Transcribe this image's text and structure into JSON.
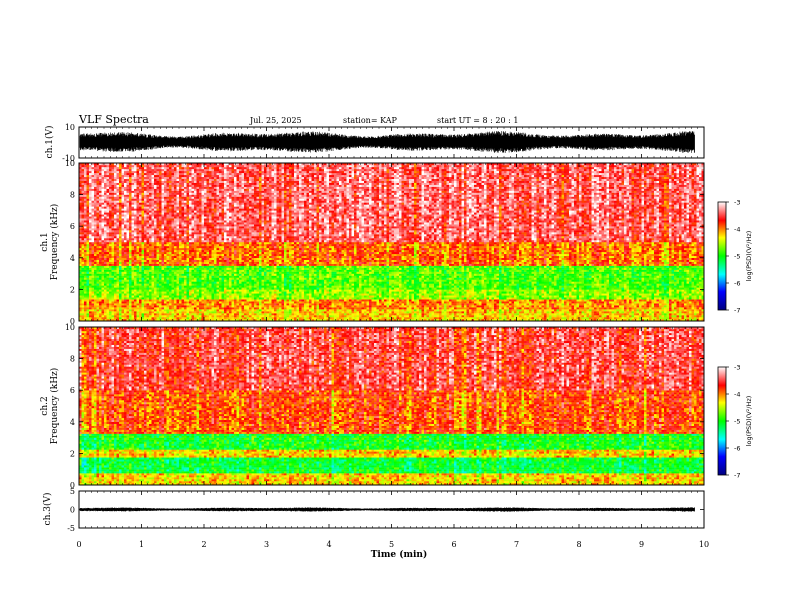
{
  "header": {
    "title": "VLF Spectra",
    "date": "Jul. 25, 2025",
    "station": "station= KAP",
    "start": "start UT =  8 : 20 : 1"
  },
  "chart_data": [
    {
      "type": "line",
      "name": "ch1-waveform",
      "ylabel": "ch.1(V)",
      "ylim": [
        -10,
        10
      ],
      "yticks": [
        "10",
        "-10"
      ],
      "xlim": [
        0,
        10
      ],
      "x_extent_min": 9.85,
      "envelope_approx": [
        -7,
        8
      ],
      "color": "#000000"
    },
    {
      "type": "heatmap",
      "name": "ch1-spectrogram",
      "ylabel_line1": "ch.1",
      "ylabel_line2": "Frequency (kHz)",
      "ylim": [
        0,
        10
      ],
      "yticks": [
        "0",
        "2",
        "4",
        "6",
        "8",
        "10"
      ],
      "xlim": [
        0,
        10
      ],
      "colorbar": {
        "label": "log(PSD)(V²/Hz)",
        "range": [
          -7,
          -3
        ],
        "ticks": [
          "-3",
          "-4",
          "-5",
          "-6",
          "-7"
        ],
        "colors": [
          "#000080",
          "#0000ff",
          "#00ffff",
          "#00ff00",
          "#ffff00",
          "#ff0000",
          "#ffffff"
        ]
      },
      "bands_kHz": [
        {
          "from": 0.0,
          "to": 0.8,
          "level": -4.2
        },
        {
          "from": 0.8,
          "to": 1.4,
          "level": -4.0
        },
        {
          "from": 1.4,
          "to": 2.0,
          "level": -4.6
        },
        {
          "from": 2.0,
          "to": 3.5,
          "level": -4.8
        },
        {
          "from": 3.5,
          "to": 5.0,
          "level": -3.9
        },
        {
          "from": 5.0,
          "to": 10.0,
          "level": -3.4
        }
      ]
    },
    {
      "type": "heatmap",
      "name": "ch2-spectrogram",
      "ylabel_line1": "ch.2",
      "ylabel_line2": "Frequency (kHz)",
      "ylim": [
        0,
        10
      ],
      "yticks": [
        "0",
        "2",
        "4",
        "6",
        "8",
        "10"
      ],
      "xlim": [
        0,
        10
      ],
      "colorbar": {
        "label": "log(PSD)(V²/Hz)",
        "range": [
          -7,
          -3
        ],
        "ticks": [
          "-3",
          "-4",
          "-5",
          "-6",
          "-7"
        ],
        "colors": [
          "#000080",
          "#0000ff",
          "#00ffff",
          "#00ff00",
          "#ffff00",
          "#ff0000",
          "#ffffff"
        ]
      },
      "bands_kHz": [
        {
          "from": 0.0,
          "to": 0.8,
          "level": -4.2
        },
        {
          "from": 0.8,
          "to": 1.8,
          "level": -5.1
        },
        {
          "from": 1.8,
          "to": 2.2,
          "level": -4.2
        },
        {
          "from": 2.2,
          "to": 3.2,
          "level": -5.0
        },
        {
          "from": 3.2,
          "to": 6.0,
          "level": -3.8
        },
        {
          "from": 6.0,
          "to": 10.0,
          "level": -3.5
        }
      ]
    },
    {
      "type": "line",
      "name": "ch3-waveform",
      "ylabel": "ch.3(V)",
      "ylim": [
        -5,
        5
      ],
      "yticks": [
        "5",
        "0",
        "-5"
      ],
      "xlim": [
        0,
        10
      ],
      "x_extent_min": 9.85,
      "envelope_approx": [
        -0.6,
        0.6
      ],
      "color": "#000000"
    }
  ],
  "xaxis": {
    "label": "Time (min)",
    "ticks": [
      "0",
      "1",
      "2",
      "3",
      "4",
      "5",
      "6",
      "7",
      "8",
      "9",
      "10"
    ]
  }
}
